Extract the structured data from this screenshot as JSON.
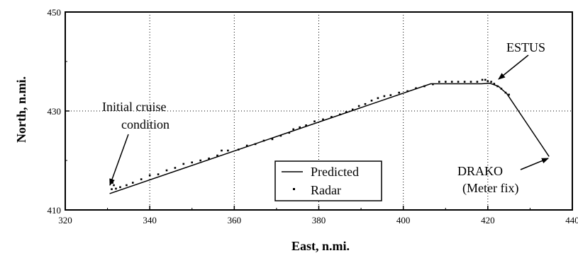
{
  "chart_data": {
    "type": "scatter",
    "xlabel": "East, n.mi.",
    "ylabel": "North, n.mi.",
    "xlim": [
      320,
      440
    ],
    "ylim": [
      410,
      450
    ],
    "x_ticks": [
      320,
      340,
      360,
      380,
      400,
      420,
      440
    ],
    "y_ticks": [
      410,
      430,
      450
    ],
    "x_tick_labels": [
      "320",
      "340",
      "360",
      "380",
      "400",
      "420",
      "440"
    ],
    "y_tick_labels": [
      "410",
      "430",
      "450"
    ],
    "grid": true,
    "grid_style": "dotted",
    "legend": {
      "position": "bottom-center"
    },
    "series": [
      {
        "name": "Predicted",
        "style": "line",
        "x": [
          330.5,
          406.5,
          418.5,
          420.5,
          422.5,
          424.5,
          434.5
        ],
        "y": [
          413.3,
          435.5,
          435.5,
          435.6,
          435.0,
          433.5,
          420.8
        ]
      },
      {
        "name": "Radar",
        "style": "points",
        "x": [
          331.0,
          331.2,
          331.5,
          332.0,
          333.0,
          334.5,
          336.0,
          338.0,
          340.0,
          342.0,
          344.0,
          346.0,
          348.0,
          350.0,
          352.0,
          354.0,
          356.0,
          357.0,
          358.5,
          361.0,
          363.0,
          365.0,
          367.0,
          369.0,
          371.0,
          373.0,
          374.0,
          375.5,
          377.0,
          379.0,
          381.0,
          383.0,
          385.0,
          386.5,
          388.0,
          389.5,
          391.0,
          392.5,
          394.0,
          395.5,
          397.0,
          399.0,
          401.0,
          403.0,
          405.0,
          407.0,
          408.5,
          410.0,
          411.5,
          413.0,
          414.5,
          416.0,
          417.5,
          418.7,
          419.4,
          420.0,
          420.8,
          421.5,
          422.3,
          423.2,
          424.2,
          425.0
        ],
        "y": [
          414.2,
          415.5,
          415.0,
          414.3,
          414.6,
          415.0,
          415.5,
          416.2,
          417.0,
          417.2,
          418.0,
          418.5,
          419.3,
          419.6,
          420.0,
          420.4,
          421.0,
          422.0,
          422.0,
          422.2,
          423.0,
          423.3,
          424.0,
          424.3,
          425.0,
          425.6,
          426.3,
          426.7,
          427.1,
          427.9,
          428.3,
          428.8,
          429.3,
          429.8,
          430.3,
          431.0,
          431.4,
          432.1,
          432.6,
          433.0,
          433.2,
          433.7,
          434.0,
          434.6,
          435.0,
          435.4,
          435.9,
          435.9,
          435.9,
          435.9,
          435.9,
          435.9,
          435.9,
          436.3,
          436.3,
          436.0,
          435.9,
          435.5,
          435.0,
          434.5,
          433.7,
          433.3
        ]
      }
    ],
    "annotations": [
      {
        "text_lines": [
          "Initial cruise",
          "condition"
        ],
        "target": [
          330.8,
          414.0
        ]
      },
      {
        "text_lines": [
          "ESTUS"
        ],
        "target": [
          422.5,
          435.2
        ]
      },
      {
        "text_lines": [
          "DRAKO",
          "(Meter fix)"
        ],
        "target": [
          434.5,
          420.8
        ]
      }
    ]
  }
}
